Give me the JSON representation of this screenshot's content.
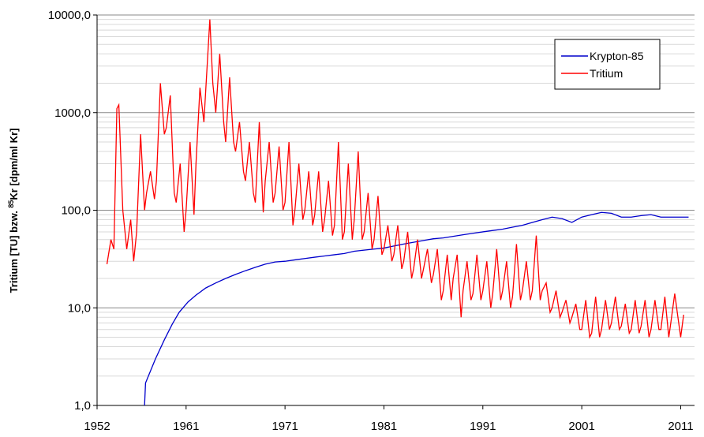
{
  "chart_data": {
    "type": "line",
    "ylabel_parts": [
      "Tritium [TU] bzw. ",
      "85",
      "Kr [dpm/ml Kr]"
    ],
    "xlim": [
      1952,
      2012.4
    ],
    "xticks": [
      1952,
      1961,
      1971,
      1981,
      1991,
      2001,
      2011
    ],
    "ylim": [
      1,
      10000
    ],
    "log_y": true,
    "grid": true,
    "minor_grid": true,
    "yticks": [
      {
        "value": 1,
        "label": "1,0"
      },
      {
        "value": 10,
        "label": "10,0"
      },
      {
        "value": 100,
        "label": "100,0"
      },
      {
        "value": 1000,
        "label": "1000,0"
      },
      {
        "value": 10000,
        "label": "10000,0"
      }
    ],
    "legend": "upper right",
    "series": [
      {
        "name": "Krypton-85",
        "color": "#0000cc",
        "x": [
          1956.8,
          1956.9,
          1957.9,
          1958.8,
          1959.6,
          1960.3,
          1961.2,
          1962,
          1963,
          1964,
          1965,
          1966,
          1967,
          1968,
          1969,
          1970,
          1971,
          1972,
          1973,
          1974,
          1975,
          1976,
          1977,
          1978,
          1979,
          1980,
          1981,
          1982,
          1983,
          1984,
          1985,
          1986,
          1987,
          1988,
          1989,
          1990,
          1991,
          1992,
          1993,
          1994,
          1995,
          1996,
          1997,
          1998,
          1999,
          2000,
          2001,
          2002,
          2003,
          2004,
          2005,
          2006,
          2007,
          2008,
          2009,
          2010,
          2011.8
        ],
        "values": [
          1.0,
          1.7,
          3,
          4.7,
          6.8,
          9,
          11.5,
          13.5,
          16,
          18,
          20,
          22,
          24,
          26,
          28,
          29.5,
          30,
          31,
          32,
          33,
          34,
          35,
          36,
          38,
          39,
          40,
          41,
          43,
          45,
          47,
          49,
          51,
          52,
          54,
          56,
          58,
          60,
          62,
          64,
          67,
          70,
          75,
          80,
          85,
          82,
          75,
          85,
          90,
          95,
          93,
          85,
          85,
          88,
          90,
          85,
          85,
          85
        ]
      },
      {
        "name": "Tritium",
        "color": "#ff0000",
        "x": [
          1953.0,
          1953.4,
          1953.7,
          1954.0,
          1954.2,
          1954.6,
          1955.0,
          1955.4,
          1955.7,
          1956.0,
          1956.4,
          1956.8,
          1957.0,
          1957.4,
          1957.8,
          1958.0,
          1958.4,
          1958.8,
          1959.0,
          1959.4,
          1959.8,
          1960.0,
          1960.4,
          1960.8,
          1961.0,
          1961.4,
          1961.8,
          1962.0,
          1962.4,
          1962.8,
          1963.0,
          1963.4,
          1963.7,
          1964.0,
          1964.4,
          1964.8,
          1965.0,
          1965.4,
          1965.8,
          1966.0,
          1966.4,
          1966.8,
          1967.0,
          1967.4,
          1967.8,
          1968.0,
          1968.4,
          1968.8,
          1969.0,
          1969.4,
          1969.8,
          1970.0,
          1970.4,
          1970.8,
          1971.0,
          1971.4,
          1971.8,
          1972.0,
          1972.4,
          1972.8,
          1973.0,
          1973.4,
          1973.8,
          1974.0,
          1974.4,
          1974.8,
          1975.0,
          1975.4,
          1975.8,
          1976.0,
          1976.4,
          1976.8,
          1977.0,
          1977.4,
          1977.8,
          1978.0,
          1978.4,
          1978.8,
          1979.0,
          1979.4,
          1979.8,
          1980.0,
          1980.4,
          1980.8,
          1981.0,
          1981.4,
          1981.8,
          1982.0,
          1982.4,
          1982.8,
          1983.0,
          1983.4,
          1983.8,
          1984.0,
          1984.4,
          1984.8,
          1985.0,
          1985.4,
          1985.8,
          1986.0,
          1986.4,
          1986.8,
          1987.0,
          1987.4,
          1987.8,
          1988.0,
          1988.4,
          1988.8,
          1989.0,
          1989.4,
          1989.8,
          1990.0,
          1990.4,
          1990.8,
          1991.0,
          1991.4,
          1991.8,
          1992.0,
          1992.4,
          1992.8,
          1993.0,
          1993.4,
          1993.8,
          1994.0,
          1994.4,
          1994.8,
          1995.0,
          1995.4,
          1995.8,
          1996.0,
          1996.4,
          1996.8,
          1997.0,
          1997.4,
          1997.8,
          1998.0,
          1998.4,
          1998.8,
          1999.0,
          1999.4,
          1999.8,
          2000.0,
          2000.4,
          2000.8,
          2001.0,
          2001.4,
          2001.8,
          2002.0,
          2002.4,
          2002.8,
          2003.0,
          2003.4,
          2003.8,
          2004.0,
          2004.4,
          2004.8,
          2005.0,
          2005.4,
          2005.8,
          2006.0,
          2006.4,
          2006.8,
          2007.0,
          2007.4,
          2007.8,
          2008.0,
          2008.4,
          2008.8,
          2009.0,
          2009.4,
          2009.8,
          2010.0,
          2010.4,
          2010.8,
          2011.0,
          2011.3
        ],
        "values": [
          28,
          50,
          40,
          1100,
          1200,
          100,
          40,
          80,
          30,
          60,
          600,
          100,
          150,
          250,
          130,
          200,
          2000,
          600,
          700,
          1500,
          150,
          120,
          300,
          60,
          100,
          500,
          90,
          300,
          1800,
          800,
          1800,
          9000,
          2000,
          1000,
          4000,
          800,
          500,
          2300,
          500,
          400,
          800,
          250,
          200,
          500,
          150,
          120,
          800,
          95,
          200,
          500,
          120,
          150,
          450,
          100,
          120,
          500,
          70,
          100,
          300,
          80,
          100,
          250,
          70,
          90,
          250,
          60,
          80,
          200,
          55,
          70,
          500,
          50,
          60,
          300,
          50,
          80,
          400,
          50,
          60,
          150,
          40,
          50,
          140,
          35,
          40,
          70,
          30,
          35,
          70,
          25,
          30,
          60,
          20,
          25,
          50,
          20,
          25,
          40,
          18,
          22,
          40,
          12,
          15,
          35,
          12,
          20,
          35,
          8,
          15,
          30,
          12,
          14,
          35,
          12,
          15,
          30,
          10,
          14,
          40,
          12,
          15,
          30,
          10,
          13,
          45,
          12,
          15,
          30,
          12,
          15,
          55,
          12,
          15,
          18,
          9,
          10,
          15,
          8,
          9,
          12,
          7,
          8,
          11,
          6,
          6,
          12,
          5,
          5.5,
          13,
          5,
          6,
          12,
          6,
          7,
          13,
          6,
          6.5,
          11,
          5.5,
          6,
          12,
          5.5,
          6.5,
          12,
          5,
          6,
          12,
          6,
          6,
          13,
          5,
          7,
          14,
          7,
          5,
          8.5
        ]
      }
    ]
  }
}
